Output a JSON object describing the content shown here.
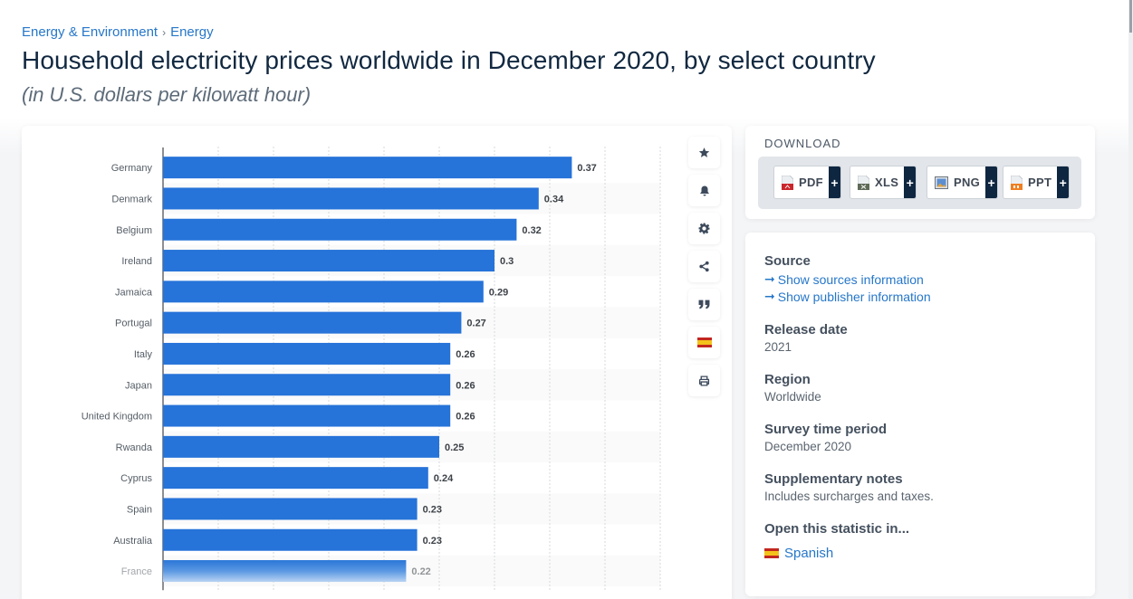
{
  "breadcrumb": {
    "items": [
      "Energy & Environment",
      "Energy"
    ],
    "separator": "›"
  },
  "header": {
    "title": "Household electricity prices worldwide in December 2020, by select country",
    "subtitle": "(in U.S. dollars per kilowatt hour)"
  },
  "toolbar": {
    "icons": [
      "star-icon",
      "bell-icon",
      "gear-icon",
      "share-icon",
      "quote-icon",
      "spain-flag-icon",
      "print-icon"
    ]
  },
  "download": {
    "title": "DOWNLOAD",
    "buttons": [
      {
        "label": "PDF",
        "plus": "+"
      },
      {
        "label": "XLS",
        "plus": "+"
      },
      {
        "label": "PNG",
        "plus": "+"
      },
      {
        "label": "PPT",
        "plus": "+"
      }
    ]
  },
  "info": {
    "source": {
      "heading": "Source",
      "links": [
        "Show sources information",
        "Show publisher information"
      ],
      "arrow": "➞"
    },
    "release_date": {
      "heading": "Release date",
      "value": "2021"
    },
    "region": {
      "heading": "Region",
      "value": "Worldwide"
    },
    "survey_period": {
      "heading": "Survey time period",
      "value": "December 2020"
    },
    "notes": {
      "heading": "Supplementary notes",
      "value": "Includes surcharges and taxes."
    },
    "open_in": {
      "heading": "Open this statistic in...",
      "language": "Spanish"
    }
  },
  "colors": {
    "bar": "#2673d9",
    "link": "#2677c9",
    "title": "#112840"
  },
  "chart_data": {
    "type": "bar",
    "orientation": "horizontal",
    "title": "Household electricity prices worldwide in December 2020, by select country",
    "subtitle": "(in U.S. dollars per kilowatt hour)",
    "xlabel": "",
    "ylabel": "",
    "categories": [
      "Germany",
      "Denmark",
      "Belgium",
      "Ireland",
      "Jamaica",
      "Portugal",
      "Italy",
      "Japan",
      "United Kingdom",
      "Rwanda",
      "Cyprus",
      "Spain",
      "Australia",
      "France"
    ],
    "values": [
      0.37,
      0.34,
      0.32,
      0.3,
      0.29,
      0.27,
      0.26,
      0.26,
      0.26,
      0.25,
      0.24,
      0.23,
      0.23,
      0.22
    ],
    "value_labels": [
      "0.37",
      "0.34",
      "0.32",
      "0.3",
      "0.29",
      "0.27",
      "0.26",
      "0.26",
      "0.26",
      "0.25",
      "0.24",
      "0.23",
      "0.23",
      "0.22"
    ],
    "xlim": [
      0,
      0.45
    ],
    "grid_step": 0.05,
    "grid": true,
    "legend": "none"
  }
}
